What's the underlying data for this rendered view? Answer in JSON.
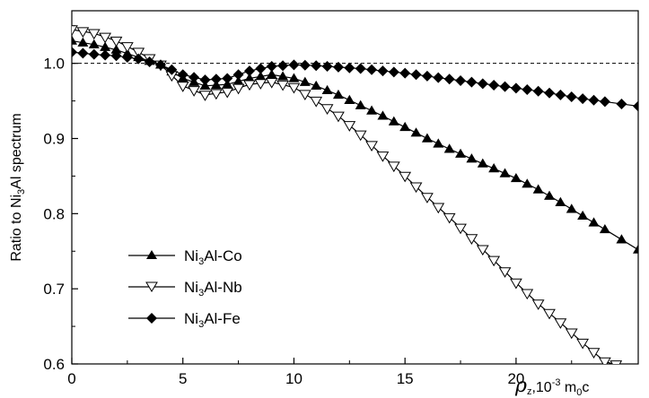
{
  "chart_data": {
    "type": "line",
    "xlabel": {
      "rho": "ρ",
      "rho_sub": "z",
      "mid": ",10",
      "exp": "-3",
      "m": " m",
      "m_sub": "0",
      "end": "c"
    },
    "ylabel": {
      "pre": "Ratio to Ni",
      "sub": "3",
      "post": "Al spectrum"
    },
    "xlim": [
      0,
      25.5
    ],
    "ylim": [
      0.6,
      1.07
    ],
    "xticks": [
      0,
      5,
      10,
      15,
      20
    ],
    "yticks": [
      0.6,
      0.7,
      0.8,
      0.9,
      1.0
    ],
    "xtick_labels": [
      "0",
      "5",
      "10",
      "15",
      "20"
    ],
    "ytick_labels": [
      "0.6",
      "0.7",
      "0.8",
      "0.9",
      "1.0"
    ],
    "reference_line": {
      "y": 1.0,
      "style": "dashed"
    },
    "legend": {
      "placement": "bottom-left"
    },
    "series": [
      {
        "name": {
          "pre": "Ni",
          "sub": "3",
          "post": "Al-Co"
        },
        "marker": "filled-triangle-up",
        "x": [
          0,
          1,
          2,
          3,
          4,
          5,
          6,
          7,
          8,
          9,
          10,
          11,
          12,
          13,
          14,
          15,
          16,
          17,
          18,
          19,
          20,
          21,
          22,
          23,
          24,
          25.5
        ],
        "y": [
          1.03,
          1.025,
          1.018,
          1.008,
          0.998,
          0.98,
          0.97,
          0.972,
          0.98,
          0.985,
          0.98,
          0.97,
          0.958,
          0.944,
          0.93,
          0.915,
          0.9,
          0.886,
          0.873,
          0.86,
          0.847,
          0.832,
          0.815,
          0.797,
          0.779,
          0.752
        ]
      },
      {
        "name": {
          "pre": "Ni",
          "sub": "3",
          "post": "Al-Nb"
        },
        "marker": "open-triangle-down",
        "x": [
          0,
          1,
          2,
          3,
          4,
          5,
          6,
          7,
          8,
          9,
          10,
          11,
          12,
          13,
          14,
          15,
          16,
          17,
          18,
          19,
          20,
          21,
          22,
          23,
          24,
          25
        ],
        "y": [
          1.045,
          1.04,
          1.03,
          1.015,
          0.998,
          0.97,
          0.958,
          0.962,
          0.972,
          0.975,
          0.968,
          0.95,
          0.93,
          0.905,
          0.877,
          0.85,
          0.822,
          0.795,
          0.767,
          0.738,
          0.708,
          0.68,
          0.655,
          0.628,
          0.603,
          0.595
        ]
      },
      {
        "name": {
          "pre": "Ni",
          "sub": "3",
          "post": "Al-Fe"
        },
        "marker": "filled-diamond",
        "x": [
          0,
          1,
          2,
          3,
          4,
          5,
          6,
          7,
          8,
          9,
          10,
          11,
          12,
          13,
          14,
          15,
          16,
          17,
          18,
          19,
          20,
          21,
          22,
          23,
          24,
          25.5
        ],
        "y": [
          1.015,
          1.012,
          1.01,
          1.006,
          0.998,
          0.985,
          0.978,
          0.98,
          0.99,
          0.996,
          0.998,
          0.997,
          0.995,
          0.993,
          0.99,
          0.987,
          0.983,
          0.979,
          0.975,
          0.971,
          0.967,
          0.963,
          0.958,
          0.953,
          0.949,
          0.943
        ]
      }
    ]
  }
}
